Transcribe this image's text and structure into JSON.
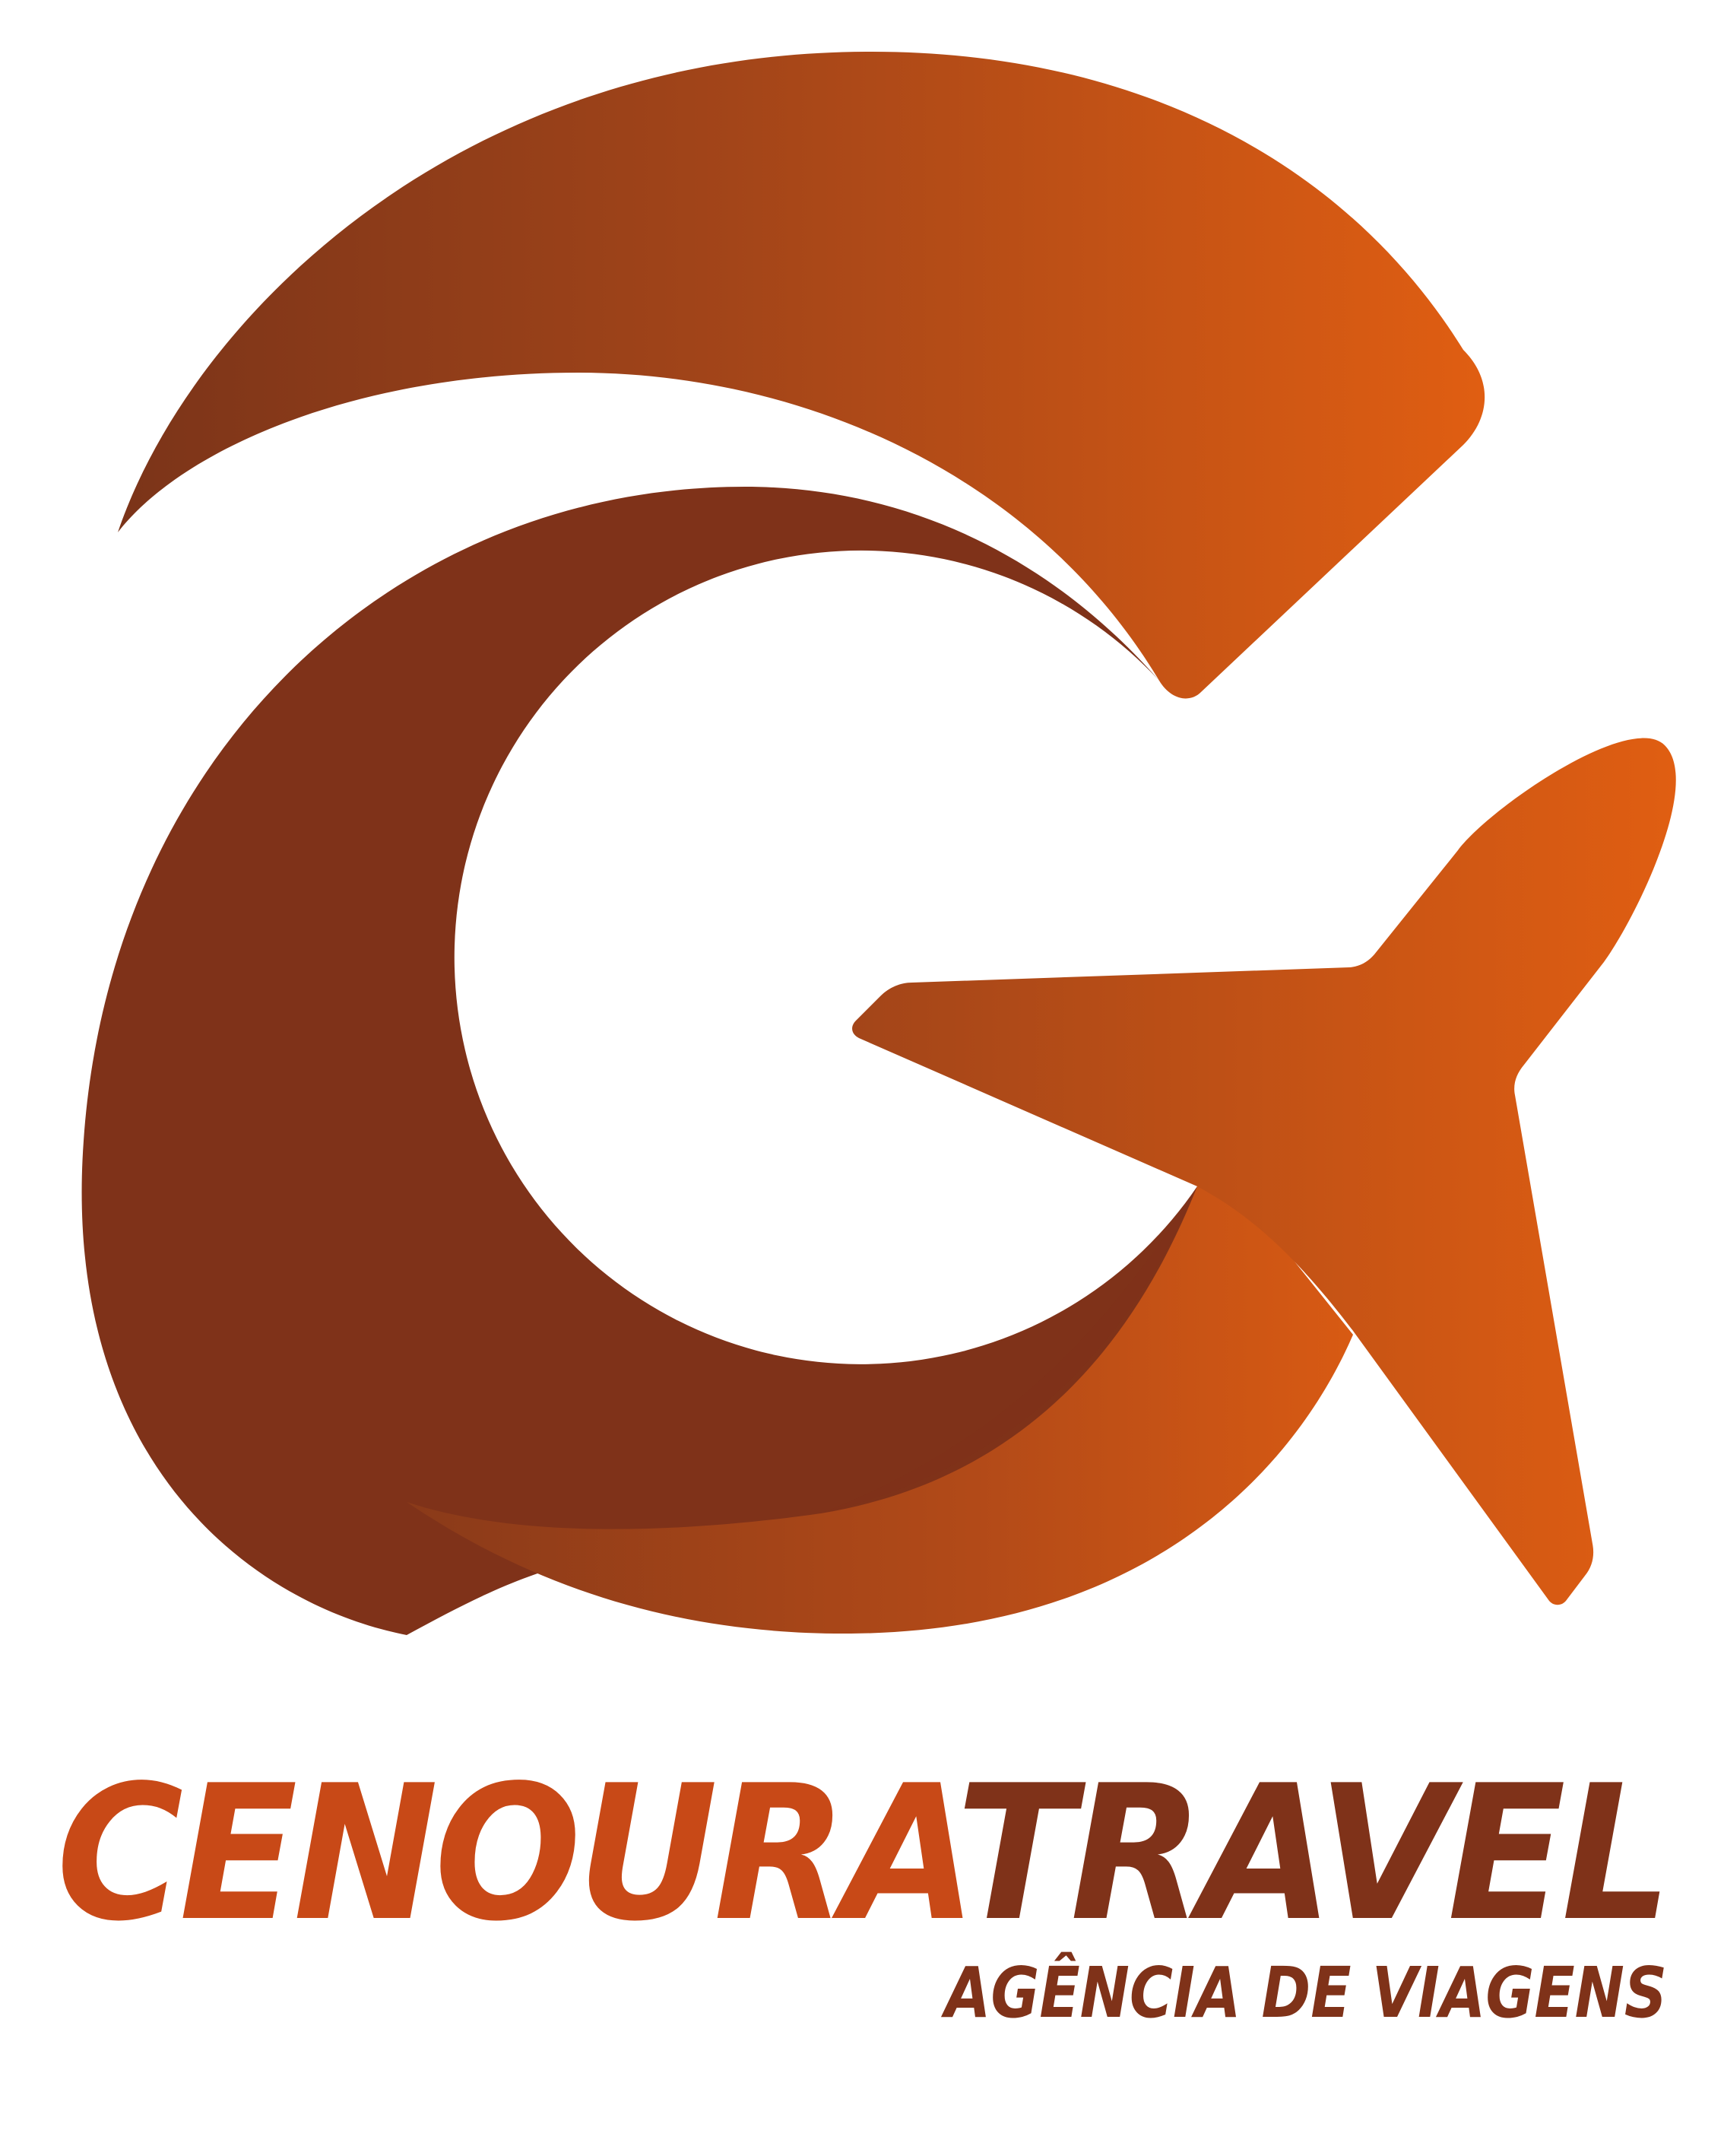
{
  "brand": {
    "name_part_1": "CENOURA",
    "name_part_2": "TRAVEL",
    "tagline": "AGÊNCIA DE VIAGENS"
  },
  "colors": {
    "orange_dark": "#7F3219",
    "orange_mid": "#A34519",
    "orange_bright": "#E05E12",
    "wordmark_orange": "#C84917",
    "wordmark_brown": "#7F3219",
    "background": "#FFFFFF"
  },
  "icons": {
    "logo": "g-airplane-logo-icon"
  }
}
